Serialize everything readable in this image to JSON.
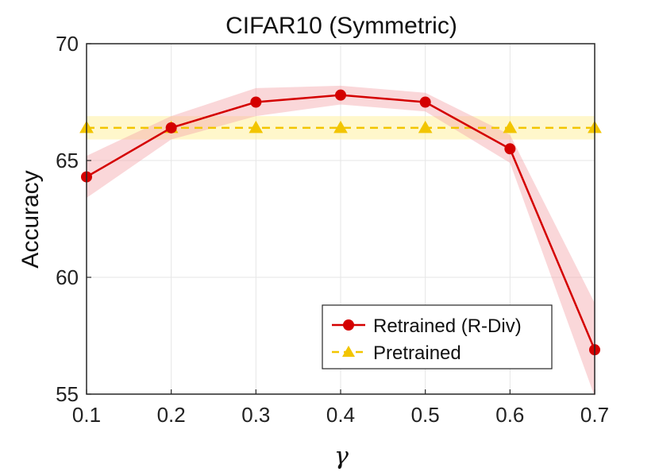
{
  "chart_data": {
    "type": "line",
    "title": "CIFAR10 (Symmetric)",
    "xlabel": "γ",
    "ylabel": "Accuracy",
    "xlim": [
      0.1,
      0.7
    ],
    "ylim": [
      55,
      70
    ],
    "x_ticks": [
      "0.1",
      "0.2",
      "0.3",
      "0.4",
      "0.5",
      "0.6",
      "0.7"
    ],
    "y_ticks": [
      "55",
      "60",
      "65",
      "70"
    ],
    "grid": true,
    "legend_position": "bottom-right",
    "x": [
      0.1,
      0.2,
      0.3,
      0.4,
      0.5,
      0.6,
      0.7
    ],
    "series": [
      {
        "name": "Retrained (R-Div)",
        "color": "#d40000",
        "band_color": "#f4a6aa",
        "marker": "circle",
        "line_style": "solid",
        "values": [
          64.3,
          66.4,
          67.5,
          67.8,
          67.5,
          65.5,
          56.9
        ],
        "lower": [
          63.4,
          65.9,
          66.9,
          67.4,
          67.1,
          64.9,
          54.9
        ],
        "upper": [
          65.2,
          66.9,
          68.1,
          68.2,
          67.9,
          66.1,
          58.9
        ]
      },
      {
        "name": "Pretrained",
        "color": "#f2c500",
        "band_color": "#fff2a8",
        "marker": "triangle",
        "line_style": "dashed",
        "values": [
          66.4,
          66.4,
          66.4,
          66.4,
          66.4,
          66.4,
          66.4
        ],
        "lower": [
          65.9,
          65.9,
          65.9,
          65.9,
          65.9,
          65.9,
          65.9
        ],
        "upper": [
          66.9,
          66.9,
          66.9,
          66.9,
          66.9,
          66.9,
          66.9
        ]
      }
    ]
  }
}
